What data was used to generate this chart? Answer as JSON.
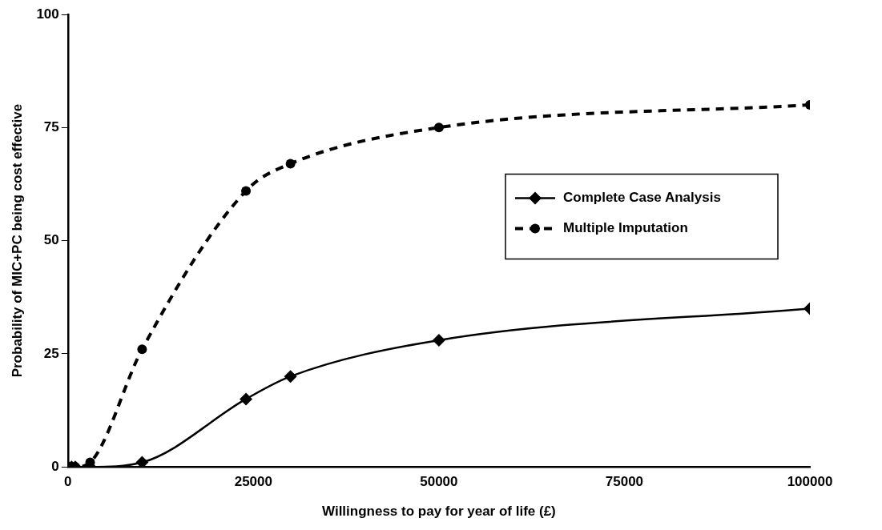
{
  "chart_data": {
    "type": "line",
    "xlabel": "Willingness to pay for year of life (£)",
    "ylabel": "Probability of MIC+PC being cost effective",
    "xlim": [
      0,
      100000
    ],
    "xticks": [
      0,
      25000,
      50000,
      75000,
      100000
    ],
    "ylim": [
      0,
      100
    ],
    "yticks": [
      0,
      25,
      50,
      75,
      100
    ],
    "grid": false,
    "legend": "right",
    "x": [
      0,
      500,
      1000,
      3000,
      10000,
      24000,
      30000,
      50000,
      100000
    ],
    "series": [
      {
        "name": "Complete Case Analysis",
        "color": "#000000",
        "values": [
          0,
          0,
          0,
          0,
          1,
          15,
          20,
          28,
          35
        ],
        "marker": "diamond",
        "line_style": "solid"
      },
      {
        "name": "Multiple Imputation",
        "color": "#000000",
        "values": [
          0,
          0,
          0,
          1,
          26,
          61,
          67,
          75,
          80
        ],
        "marker": "circle",
        "line_style": "dashed"
      }
    ]
  }
}
